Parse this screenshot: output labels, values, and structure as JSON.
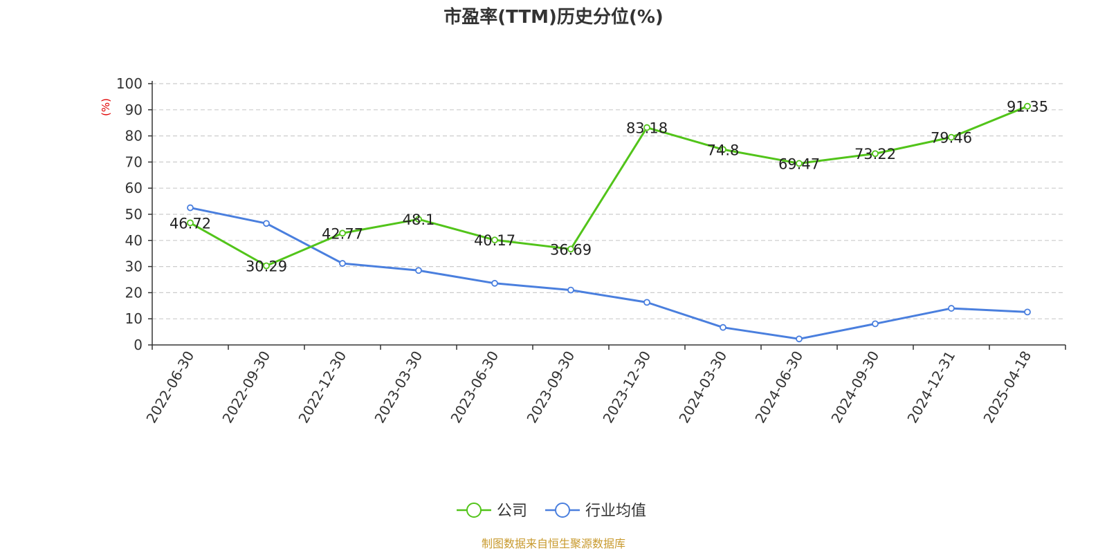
{
  "chart_data": {
    "type": "line",
    "title": "市盈率(TTM)历史分位(%)",
    "y_unit": "(%)",
    "categories": [
      "2022-06-30",
      "2022-09-30",
      "2022-12-30",
      "2023-03-30",
      "2023-06-30",
      "2023-09-30",
      "2023-12-30",
      "2024-03-30",
      "2024-06-30",
      "2024-09-30",
      "2024-12-31",
      "2025-04-18"
    ],
    "ylim": [
      0,
      100
    ],
    "yticks": [
      0,
      10,
      20,
      30,
      40,
      50,
      60,
      70,
      80,
      90,
      100
    ],
    "grid": true,
    "legend_position": "bottom-center",
    "series": [
      {
        "name": "公司",
        "color": "#52c41a",
        "values": [
          46.72,
          30.29,
          42.77,
          48.1,
          40.17,
          36.69,
          83.18,
          74.8,
          69.47,
          73.22,
          79.46,
          91.35
        ],
        "labels": [
          "46.72",
          "30.29",
          "42.77",
          "48.1",
          "40.17",
          "36.69",
          "83.18",
          "74.8",
          "69.47",
          "73.22",
          "79.46",
          "91.35"
        ]
      },
      {
        "name": "行业均值",
        "color": "#4a7fde",
        "values": [
          52.5,
          46.5,
          31.2,
          28.5,
          23.6,
          21.0,
          16.3,
          6.7,
          2.3,
          8.1,
          14.0,
          12.6
        ]
      }
    ]
  },
  "footer": {
    "source": "制图数据来自恒生聚源数据库"
  }
}
